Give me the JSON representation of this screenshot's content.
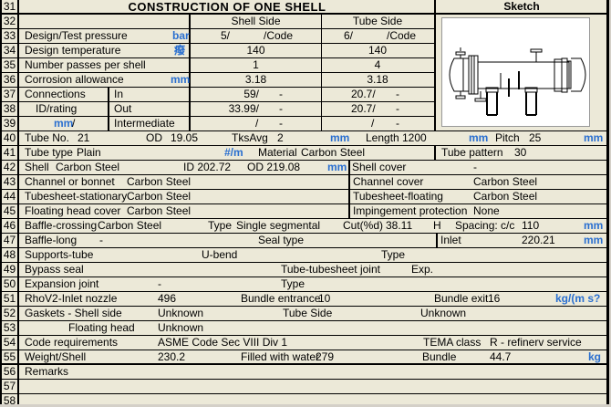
{
  "title": "CONSTRUCTION OF ONE SHELL",
  "sketch": {
    "title": "Sketch",
    "image": "shell-and-tube-heat-exchanger-drawing"
  },
  "units_color": "#2a6fd0",
  "row_numbers": [
    "31",
    "32",
    "33",
    "34",
    "35",
    "36",
    "37",
    "38",
    "39",
    "40",
    "41",
    "42",
    "43",
    "44",
    "45",
    "46",
    "47",
    "48",
    "49",
    "50",
    "51",
    "52",
    "53",
    "54",
    "55",
    "56",
    "57",
    "58"
  ],
  "header": {
    "shell": "Shell Side",
    "tube": "Tube Side"
  },
  "r33": {
    "label": "Design/Test pressure",
    "unit": "bar",
    "shell_a": "5/",
    "shell_b": "/Code",
    "tube_a": "6/",
    "tube_b": "/Code"
  },
  "r34": {
    "label": "Design temperature",
    "unit": "癈",
    "shell": "140",
    "tube": "140"
  },
  "r35": {
    "label": "Number passes per shell",
    "shell": "1",
    "tube": "4"
  },
  "r36": {
    "label": "Corrosion allowance",
    "unit": "mm",
    "shell": "3.18",
    "tube": "3.18"
  },
  "r37": {
    "label": "Connections",
    "sub": "In",
    "shell_a": "59/",
    "shell_b": "-",
    "tube_a": "20.7/",
    "tube_b": "-"
  },
  "r38": {
    "label": "ID/rating",
    "sub": "Out",
    "shell_a": "33.99/",
    "shell_b": "-",
    "tube_a": "20.7/",
    "tube_b": "-"
  },
  "r39": {
    "unit": "mm",
    "slash": "/",
    "sub": "Intermediate",
    "shell_a": "/",
    "shell_b": "-",
    "tube_a": "/",
    "tube_b": "-"
  },
  "r40": {
    "label": "Tube No.",
    "no": "21",
    "od_label": "OD",
    "od": "19.05",
    "tks_label": "TksAvg",
    "tks": "2",
    "unit1": "mm",
    "len_label": "Length",
    "len": "1200",
    "unit2": "mm",
    "pitch_label": "Pitch",
    "pitch": "25",
    "unit3": "mm"
  },
  "r41": {
    "label": "Tube type",
    "type": "Plain",
    "unit": "#/m",
    "mat_label": "Material",
    "mat": "Carbon Steel",
    "pattern_label": "Tube pattern",
    "pattern": "30"
  },
  "r42": {
    "label": "Shell",
    "mat": "Carbon Steel",
    "id": "ID 202.72",
    "od": "OD 219.08",
    "unit": "mm",
    "r_label": "Shell cover",
    "r_val": "-"
  },
  "r43": {
    "label": "Channel or bonnet",
    "val": "Carbon Steel",
    "r_label": "Channel cover",
    "r_val": "Carbon Steel"
  },
  "r44": {
    "label": "Tubesheet-stationary",
    "val": "Carbon Steel",
    "r_label": "Tubesheet-floating",
    "r_val": "Carbon Steel"
  },
  "r45": {
    "label": "Floating head cover",
    "val": "Carbon Steel",
    "r_label": "Impingement protection",
    "r_val": "None"
  },
  "r46": {
    "label": "Baffle-crossing",
    "mat": "Carbon Steel",
    "type_label": "Type",
    "type": "Single segmental",
    "cut_label": "Cut(%d)",
    "cut": "38.11",
    "orient": "H",
    "spacing_label": "Spacing: c/c",
    "spacing": "110",
    "unit": "mm"
  },
  "r47": {
    "label": "Baffle-long",
    "val": "-",
    "seal_label": "Seal type",
    "inlet_label": "Inlet",
    "inlet": "220.21",
    "unit": "mm"
  },
  "r48": {
    "label": "Supports-tube",
    "val": "U-bend",
    "type_label": "Type"
  },
  "r49": {
    "label": "Bypass seal",
    "joint_label": "Tube-tubesheet joint",
    "joint": "Exp."
  },
  "r50": {
    "label": "Expansion joint",
    "val": "-",
    "type_label": "Type"
  },
  "r51": {
    "label": "RhoV2-Inlet nozzle",
    "val": "496",
    "entr_label": "Bundle entrance",
    "entr": "10",
    "exit_label": "Bundle exit",
    "exit": "16",
    "unit": "kg/(m s?"
  },
  "r52": {
    "label": "Gaskets - Shell side",
    "val": "Unknown",
    "tube_label": "Tube Side",
    "tube": "Unknown"
  },
  "r53": {
    "label": "Floating head",
    "val": "Unknown"
  },
  "r54": {
    "label": "Code requirements",
    "val": "ASME Code Sec VIII Div 1",
    "tema_label": "TEMA class",
    "tema": "R - refinerv service"
  },
  "r55": {
    "label": "Weight/Shell",
    "val": "230.2",
    "water_label": "Filled with water",
    "water": "279",
    "bundle_label": "Bundle",
    "bundle": "44.7",
    "unit": "kg"
  },
  "r56": {
    "label": "Remarks"
  }
}
